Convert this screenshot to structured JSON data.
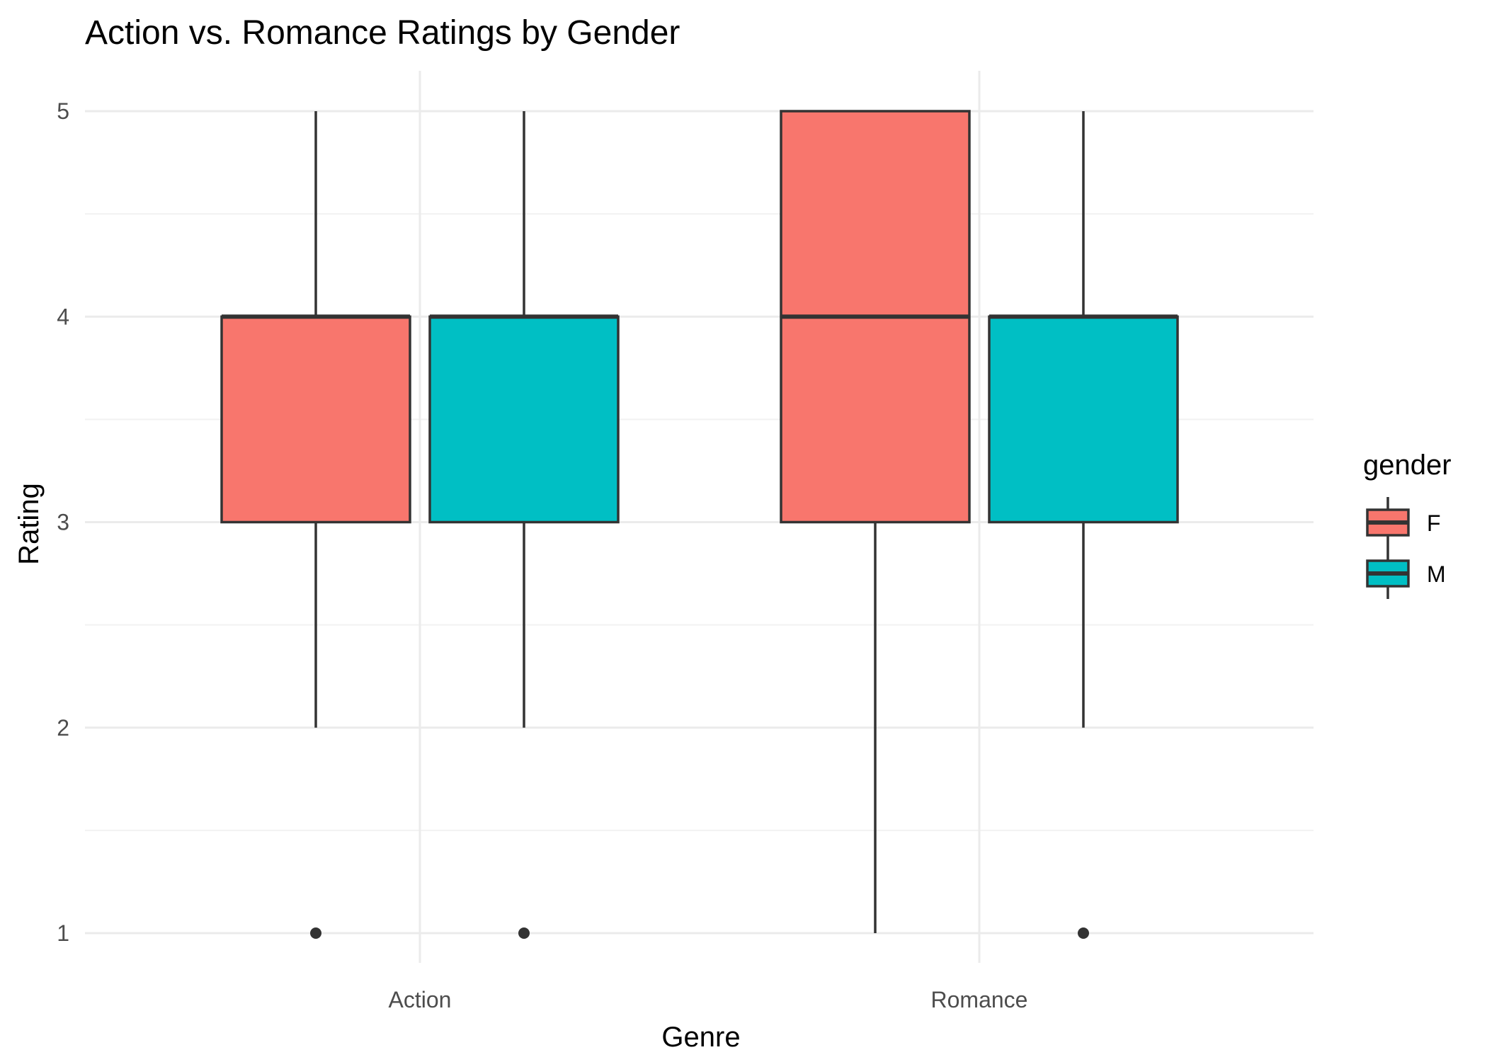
{
  "chart_data": {
    "type": "boxplot",
    "title": "Action vs. Romance Ratings by Gender",
    "xlabel": "Genre",
    "ylabel": "Rating",
    "categories": [
      "Action",
      "Romance"
    ],
    "ylim": [
      0.8,
      5.2
    ],
    "y_ticks": [
      1,
      2,
      3,
      4,
      5
    ],
    "grid": true,
    "legend": {
      "title": "gender",
      "position": "right",
      "entries": [
        {
          "label": "F",
          "color": "#F8766D"
        },
        {
          "label": "M",
          "color": "#00BFC4"
        }
      ]
    },
    "series": [
      {
        "name": "F",
        "color": "#F8766D",
        "boxes": [
          {
            "category": "Action",
            "lower_whisker": 2,
            "q1": 3,
            "median": 4,
            "q3": 4,
            "upper_whisker": 5,
            "outliers": [
              1
            ]
          },
          {
            "category": "Romance",
            "lower_whisker": 1,
            "q1": 3,
            "median": 4,
            "q3": 5,
            "upper_whisker": 5,
            "outliers": []
          }
        ]
      },
      {
        "name": "M",
        "color": "#00BFC4",
        "boxes": [
          {
            "category": "Action",
            "lower_whisker": 2,
            "q1": 3,
            "median": 4,
            "q3": 4,
            "upper_whisker": 5,
            "outliers": [
              1
            ]
          },
          {
            "category": "Romance",
            "lower_whisker": 2,
            "q1": 3,
            "median": 4,
            "q3": 4,
            "upper_whisker": 5,
            "outliers": [
              1
            ]
          }
        ]
      }
    ]
  }
}
